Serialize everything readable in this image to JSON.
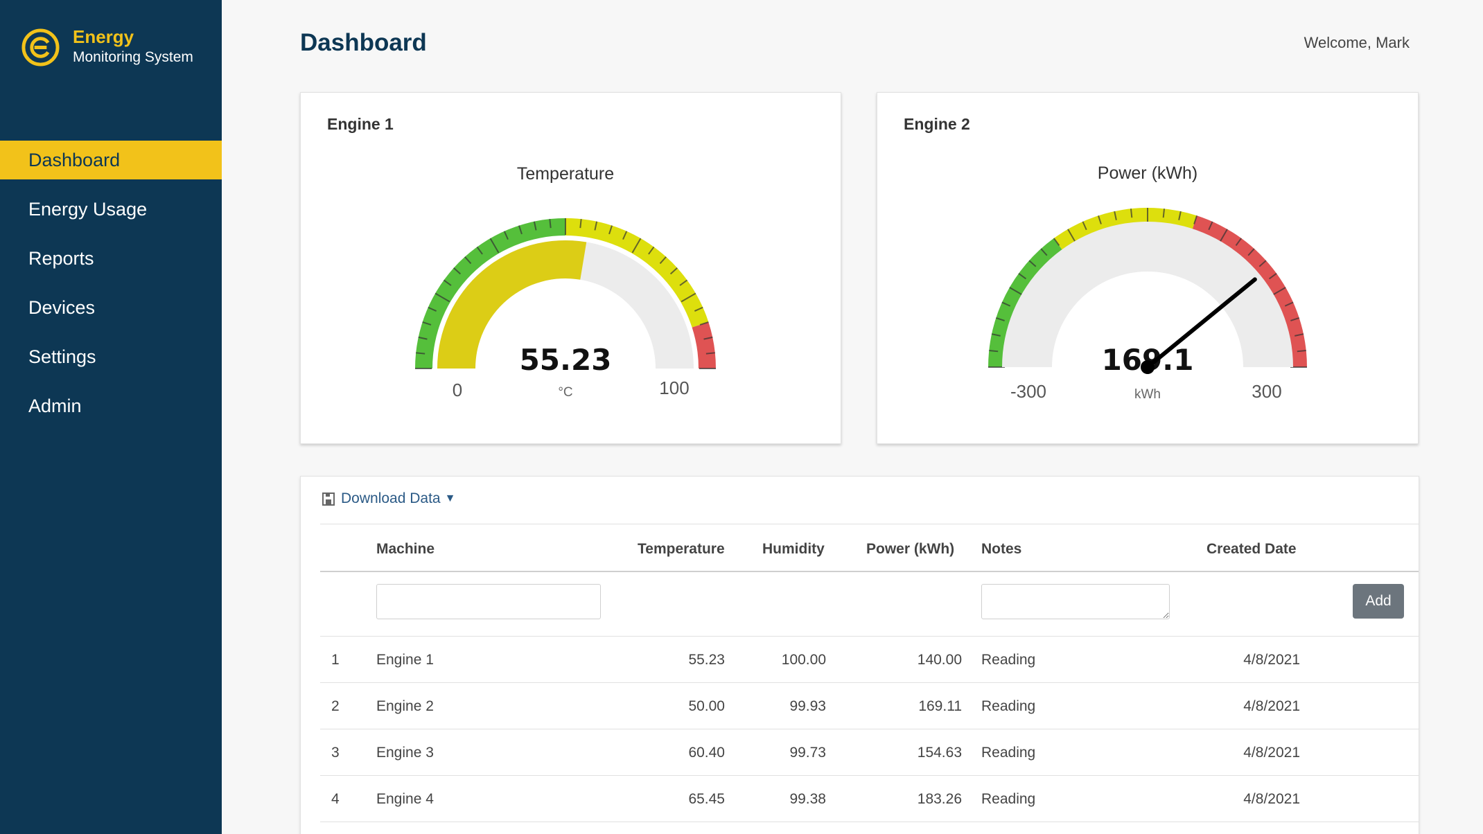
{
  "brand": {
    "title": "Energy",
    "subtitle": "Monitoring System",
    "accent": "#f2c21a",
    "sidebar_color": "#0d3754",
    "logo_icon": "e-circle-logo"
  },
  "nav": {
    "items": [
      {
        "label": "Dashboard",
        "active": true
      },
      {
        "label": "Energy Usage",
        "active": false
      },
      {
        "label": "Reports",
        "active": false
      },
      {
        "label": "Devices",
        "active": false
      },
      {
        "label": "Settings",
        "active": false
      },
      {
        "label": "Admin",
        "active": false
      }
    ]
  },
  "header": {
    "title": "Dashboard",
    "welcome": "Welcome, Mark"
  },
  "gauges": [
    {
      "card_title": "Engine 1",
      "chart_title": "Temperature",
      "value_text": "55.23",
      "value": 55.23,
      "unit": "°C",
      "min": 0,
      "max": 100,
      "min_label": "0",
      "max_label": "100",
      "style": "fill"
    },
    {
      "card_title": "Engine 2",
      "chart_title": "Power (kWh)",
      "value_text": "169.1",
      "value": 169.1,
      "unit": "kWh",
      "min": -300,
      "max": 300,
      "min_label": "-300",
      "max_label": "300",
      "style": "needle"
    }
  ],
  "chart_data": [
    {
      "type": "gauge",
      "title": "Temperature",
      "value": 55.23,
      "unit": "°C",
      "range": [
        0,
        100
      ],
      "bands": [
        {
          "from": 0,
          "to": 50,
          "color": "#55bf3b"
        },
        {
          "from": 50,
          "to": 90,
          "color": "#dddf0d"
        },
        {
          "from": 90,
          "to": 100,
          "color": "#df5353"
        }
      ]
    },
    {
      "type": "gauge",
      "title": "Power (kWh)",
      "value": 169.1,
      "unit": "kWh",
      "range": [
        -300,
        300
      ],
      "bands": [
        {
          "from": -300,
          "to": -120,
          "color": "#55bf3b"
        },
        {
          "from": -120,
          "to": 60,
          "color": "#dddf0d"
        },
        {
          "from": 60,
          "to": 300,
          "color": "#df5353"
        }
      ]
    }
  ],
  "table": {
    "download_label": "Download Data",
    "download_icon": "save-icon",
    "columns": [
      "Machine",
      "Temperature",
      "Humidity",
      "Power (kWh)",
      "Notes",
      "Created Date"
    ],
    "add_label": "Add",
    "rows": [
      {
        "index": "1",
        "machine": "Engine 1",
        "temperature": "55.23",
        "humidity": "100.00",
        "power": "140.00",
        "notes": "Reading",
        "created": "4/8/2021"
      },
      {
        "index": "2",
        "machine": "Engine 2",
        "temperature": "50.00",
        "humidity": "99.93",
        "power": "169.11",
        "notes": "Reading",
        "created": "4/8/2021"
      },
      {
        "index": "3",
        "machine": "Engine 3",
        "temperature": "60.40",
        "humidity": "99.73",
        "power": "154.63",
        "notes": "Reading",
        "created": "4/8/2021"
      },
      {
        "index": "4",
        "machine": "Engine 4",
        "temperature": "65.45",
        "humidity": "99.38",
        "power": "183.26",
        "notes": "Reading",
        "created": "4/8/2021"
      }
    ]
  }
}
